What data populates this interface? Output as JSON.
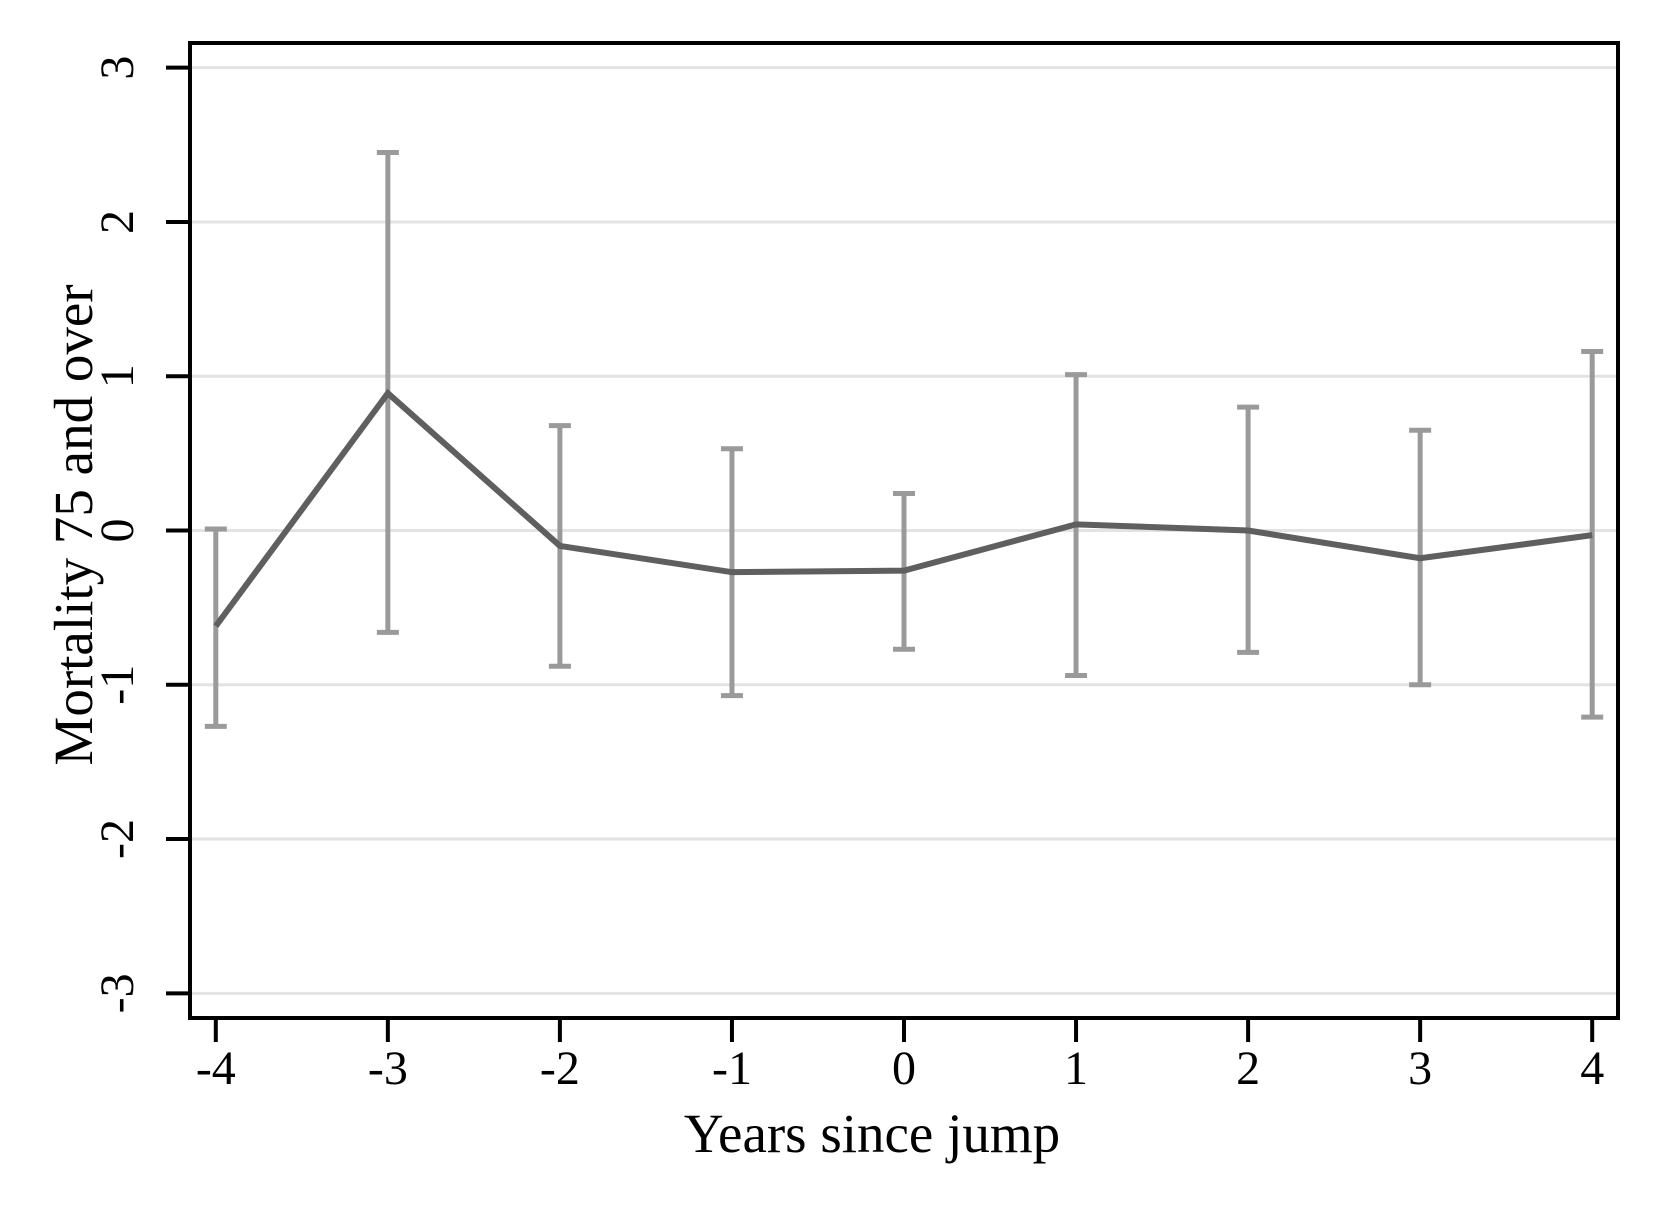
{
  "figure": {
    "background": "#ffffff"
  },
  "chart_data": {
    "type": "line",
    "title": "",
    "xlabel": "Years since jump",
    "ylabel": "Mortality 75 and over",
    "x": [
      -4,
      -3,
      -2,
      -1,
      0,
      1,
      2,
      3,
      4
    ],
    "series": [
      {
        "name": "estimate",
        "values": [
          -0.62,
          0.89,
          -0.1,
          -0.27,
          -0.26,
          0.04,
          0.0,
          -0.18,
          -0.03
        ]
      },
      {
        "name": "ci_upper",
        "values": [
          0.01,
          2.45,
          0.68,
          0.53,
          0.24,
          1.01,
          0.8,
          0.65,
          1.16
        ]
      },
      {
        "name": "ci_lower",
        "values": [
          -1.27,
          -0.66,
          -0.88,
          -1.07,
          -0.77,
          -0.94,
          -0.79,
          -1.0,
          -1.21
        ]
      }
    ],
    "x_ticks": [
      -4,
      -3,
      -2,
      -1,
      0,
      1,
      2,
      3,
      4
    ],
    "y_ticks": [
      3,
      2,
      1,
      0,
      -1,
      -2,
      -3
    ],
    "xlim": [
      -4.15,
      4.15
    ],
    "ylim": [
      -3.16,
      3.16
    ],
    "grid": "horizontal-only",
    "legend": "none",
    "error_bar_caps": true,
    "colors": {
      "line": "#5f5f5f",
      "error_bar": "#9a9a9a",
      "gridline": "#e3e3e3",
      "axis": "#000000",
      "text": "#000000"
    }
  }
}
